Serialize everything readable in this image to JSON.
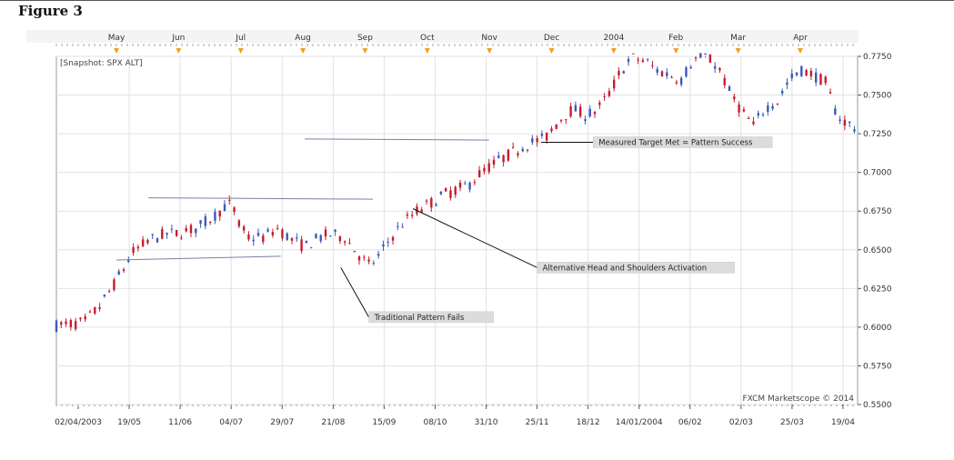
{
  "figure_title": "Figure 3",
  "chart_data": {
    "type": "candlestick",
    "title": "",
    "snapshot_label": "[Snapshot: SPX ALT]",
    "watermark": "FXCM Marketscope © 2014",
    "ylim": [
      0.55,
      0.775
    ],
    "y_ticks": [
      "0.7750",
      "0.7500",
      "0.7250",
      "0.7000",
      "0.6750",
      "0.6500",
      "0.6250",
      "0.6000",
      "0.5750",
      "0.5500"
    ],
    "x_ticks": [
      "02/04/2003",
      "19/05",
      "11/06",
      "04/07",
      "29/07",
      "21/08",
      "15/09",
      "08/10",
      "31/10",
      "25/11",
      "18/12",
      "14/01/2004",
      "06/02",
      "02/03",
      "25/03",
      "19/04"
    ],
    "month_ticks": [
      "May",
      "Jun",
      "Jul",
      "Aug",
      "Sep",
      "Oct",
      "Nov",
      "Dec",
      "2004",
      "Feb",
      "Mar",
      "Apr"
    ],
    "grid": true,
    "colors": {
      "up": "#3a5ab8",
      "down": "#c51d2e",
      "line": "#7b7fa8"
    },
    "trend_path": [
      [
        0,
        0.601
      ],
      [
        14,
        0.603
      ],
      [
        22,
        0.614
      ],
      [
        30,
        0.63
      ],
      [
        38,
        0.648
      ],
      [
        46,
        0.656
      ],
      [
        54,
        0.66
      ],
      [
        62,
        0.661
      ],
      [
        70,
        0.664
      ],
      [
        78,
        0.671
      ],
      [
        84,
        0.678
      ],
      [
        88,
        0.68
      ],
      [
        90,
        0.668
      ],
      [
        96,
        0.658
      ],
      [
        104,
        0.658
      ],
      [
        110,
        0.664
      ],
      [
        118,
        0.656
      ],
      [
        124,
        0.652
      ],
      [
        130,
        0.657
      ],
      [
        136,
        0.66
      ],
      [
        144,
        0.658
      ],
      [
        150,
        0.648
      ],
      [
        156,
        0.64
      ],
      [
        160,
        0.644
      ],
      [
        166,
        0.656
      ],
      [
        172,
        0.666
      ],
      [
        180,
        0.675
      ],
      [
        188,
        0.681
      ],
      [
        194,
        0.686
      ],
      [
        200,
        0.689
      ],
      [
        206,
        0.692
      ],
      [
        212,
        0.7
      ],
      [
        220,
        0.707
      ],
      [
        228,
        0.713
      ],
      [
        236,
        0.719
      ],
      [
        244,
        0.722
      ],
      [
        252,
        0.735
      ],
      [
        258,
        0.741
      ],
      [
        264,
        0.737
      ],
      [
        270,
        0.74
      ],
      [
        276,
        0.751
      ],
      [
        282,
        0.766
      ],
      [
        288,
        0.774
      ],
      [
        294,
        0.772
      ],
      [
        300,
        0.766
      ],
      [
        306,
        0.763
      ],
      [
        312,
        0.76
      ],
      [
        318,
        0.773
      ],
      [
        324,
        0.775
      ],
      [
        330,
        0.769
      ],
      [
        336,
        0.752
      ],
      [
        342,
        0.74
      ],
      [
        348,
        0.73
      ],
      [
        354,
        0.742
      ],
      [
        360,
        0.746
      ],
      [
        366,
        0.76
      ],
      [
        372,
        0.766
      ],
      [
        378,
        0.763
      ],
      [
        384,
        0.758
      ],
      [
        390,
        0.736
      ],
      [
        396,
        0.731
      ],
      [
        400,
        0.728
      ]
    ],
    "annotations": [
      {
        "text": "Measured Target Met = Pattern Success",
        "x": 268,
        "y": 0.7195,
        "point": [
          242,
          0.7195
        ]
      },
      {
        "text": "Alternative Head and Shoulders Activation",
        "x": 240,
        "y": 0.6385,
        "point": [
          178,
          0.6766
        ]
      },
      {
        "text": "Traditional Pattern Fails",
        "x": 156,
        "y": 0.6065,
        "point": [
          142,
          0.6385
        ]
      }
    ],
    "levels": [
      {
        "name": "neckline",
        "from": [
          30,
          0.6434
        ],
        "to": [
          112,
          0.6458
        ]
      },
      {
        "name": "head-level",
        "from": [
          46,
          0.6836
        ],
        "to": [
          158,
          0.6827
        ]
      },
      {
        "name": "target-level",
        "from": [
          124,
          0.7216
        ],
        "to": [
          216,
          0.7209
        ]
      }
    ]
  }
}
